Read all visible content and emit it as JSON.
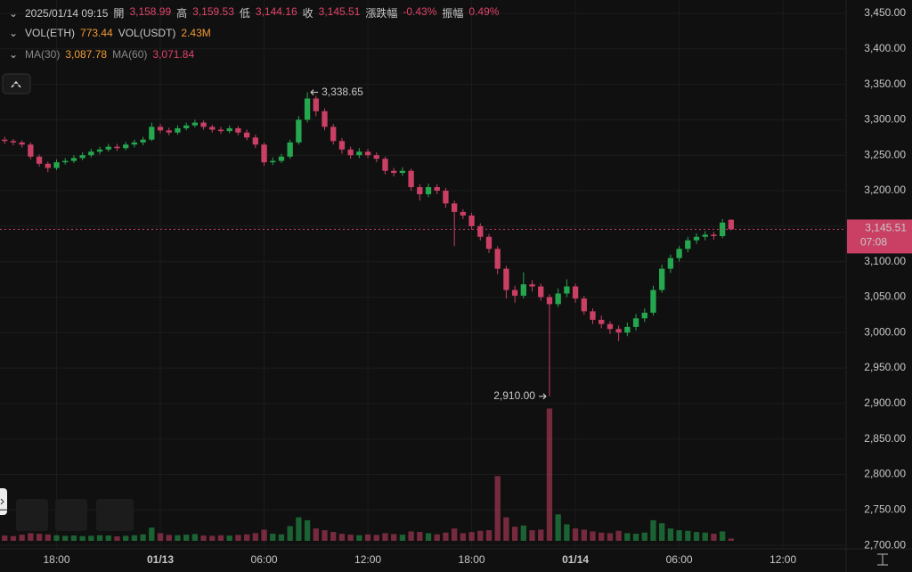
{
  "header": {
    "time": "2025/01/14 09:15",
    "fields": [
      {
        "label": "開",
        "value": "3,158.99"
      },
      {
        "label": "高",
        "value": "3,159.53"
      },
      {
        "label": "低",
        "value": "3,144.16"
      },
      {
        "label": "收",
        "value": "3,145.51"
      },
      {
        "label": "漲跌幅",
        "value": "-0.43%"
      },
      {
        "label": "振幅",
        "value": "0.49%"
      }
    ],
    "volume": [
      {
        "label": "VOL(ETH)",
        "value": "773.44"
      },
      {
        "label": "VOL(USDT)",
        "value": "2.43M"
      }
    ],
    "ma": [
      {
        "label": "MA(30)",
        "value": "3,087.78"
      },
      {
        "label": "MA(60)",
        "value": "3,071.84"
      }
    ]
  },
  "chart_data": {
    "type": "candlestick",
    "up_color": "#25a750",
    "down_color": "#ca3f64",
    "grid": true,
    "xlim": [
      -9.27,
      39.65
    ],
    "xticks": [
      {
        "value": -6,
        "label": "18:00"
      },
      {
        "value": 0,
        "label": "01/13"
      },
      {
        "value": 6,
        "label": "06:00"
      },
      {
        "value": 12,
        "label": "12:00"
      },
      {
        "value": 18,
        "label": "18:00"
      },
      {
        "value": 24,
        "label": "01/14"
      },
      {
        "value": 30,
        "label": "06:00"
      },
      {
        "value": 36,
        "label": "12:00"
      }
    ],
    "ylim": [
      2690.1,
      3468.8
    ],
    "yticks": [
      {
        "value": 2700,
        "label": "2,700.00"
      },
      {
        "value": 2750,
        "label": "2,750.00"
      },
      {
        "value": 2800,
        "label": "2,800.00"
      },
      {
        "value": 2850,
        "label": "2,850.00"
      },
      {
        "value": 2900,
        "label": "2,900.00"
      },
      {
        "value": 2950,
        "label": "2,950.00"
      },
      {
        "value": 3000,
        "label": "3,000.00"
      },
      {
        "value": 3050,
        "label": "3,050.00"
      },
      {
        "value": 3100,
        "label": "3,100.00"
      },
      {
        "value": 3150,
        "label": "3,150.00"
      },
      {
        "value": 3200,
        "label": "3,200.00"
      },
      {
        "value": 3250,
        "label": "3,250.00"
      },
      {
        "value": 3300,
        "label": "3,300.00"
      },
      {
        "value": 3350,
        "label": "3,350.00"
      },
      {
        "value": 3400,
        "label": "3,400.00"
      },
      {
        "value": 3450,
        "label": "3,450.00"
      }
    ],
    "x": [
      -9,
      -8.5,
      -8,
      -7.5,
      -7,
      -6.5,
      -6,
      -5.5,
      -5,
      -4.5,
      -4,
      -3.5,
      -3,
      -2.5,
      -2,
      -1.5,
      -1,
      -0.5,
      0,
      0.5,
      1,
      1.5,
      2,
      2.5,
      3,
      3.5,
      4,
      4.5,
      5,
      5.5,
      6,
      6.5,
      7,
      7.5,
      8,
      8.5,
      9,
      9.5,
      10,
      10.5,
      11,
      11.5,
      12,
      12.5,
      13,
      13.5,
      14,
      14.5,
      15,
      15.5,
      16,
      16.5,
      17,
      17.5,
      18,
      18.5,
      19,
      19.5,
      20,
      20.5,
      21,
      21.5,
      22,
      22.5,
      23,
      23.5,
      24,
      24.5,
      25,
      25.5,
      26,
      26.5,
      27,
      27.5,
      28,
      28.5,
      29,
      29.5,
      30,
      30.5,
      31,
      31.5,
      32,
      32.5,
      33
    ],
    "candles": [
      [
        3272,
        3276,
        3266,
        3270
      ],
      [
        3270,
        3273,
        3264,
        3268
      ],
      [
        3268,
        3271,
        3261,
        3265
      ],
      [
        3265,
        3268,
        3244,
        3248
      ],
      [
        3248,
        3251,
        3234,
        3238
      ],
      [
        3238,
        3241,
        3226,
        3232
      ],
      [
        3232,
        3244,
        3229,
        3240
      ],
      [
        3240,
        3246,
        3237,
        3242
      ],
      [
        3242,
        3250,
        3239,
        3246
      ],
      [
        3246,
        3254,
        3243,
        3250
      ],
      [
        3250,
        3259,
        3247,
        3255
      ],
      [
        3255,
        3262,
        3251,
        3258
      ],
      [
        3258,
        3266,
        3255,
        3262
      ],
      [
        3262,
        3266,
        3256,
        3260
      ],
      [
        3260,
        3269,
        3257,
        3265
      ],
      [
        3265,
        3272,
        3261,
        3268
      ],
      [
        3268,
        3276,
        3264,
        3272
      ],
      [
        3272,
        3296,
        3270,
        3290
      ],
      [
        3290,
        3294,
        3281,
        3285
      ],
      [
        3285,
        3289,
        3278,
        3282
      ],
      [
        3282,
        3292,
        3279,
        3288
      ],
      [
        3288,
        3296,
        3285,
        3292
      ],
      [
        3292,
        3300,
        3289,
        3296
      ],
      [
        3296,
        3299,
        3286,
        3290
      ],
      [
        3290,
        3293,
        3282,
        3286
      ],
      [
        3286,
        3290,
        3280,
        3284
      ],
      [
        3284,
        3292,
        3281,
        3288
      ],
      [
        3288,
        3291,
        3278,
        3282
      ],
      [
        3282,
        3286,
        3271,
        3275
      ],
      [
        3275,
        3279,
        3260,
        3265
      ],
      [
        3265,
        3268,
        3235,
        3240
      ],
      [
        3240,
        3247,
        3236,
        3242
      ],
      [
        3242,
        3252,
        3239,
        3248
      ],
      [
        3248,
        3272,
        3245,
        3268
      ],
      [
        3268,
        3305,
        3265,
        3300
      ],
      [
        3300,
        3338.65,
        3296,
        3330
      ],
      [
        3330,
        3334,
        3305,
        3312
      ],
      [
        3312,
        3316,
        3285,
        3290
      ],
      [
        3290,
        3294,
        3265,
        3270
      ],
      [
        3270,
        3274,
        3252,
        3258
      ],
      [
        3258,
        3262,
        3245,
        3250
      ],
      [
        3250,
        3260,
        3246,
        3255
      ],
      [
        3255,
        3259,
        3246,
        3250
      ],
      [
        3250,
        3254,
        3240,
        3245
      ],
      [
        3245,
        3248,
        3223,
        3228
      ],
      [
        3228,
        3232,
        3220,
        3225
      ],
      [
        3225,
        3233,
        3221,
        3228
      ],
      [
        3228,
        3231,
        3200,
        3205
      ],
      [
        3205,
        3209,
        3186,
        3195
      ],
      [
        3195,
        3210,
        3191,
        3205
      ],
      [
        3205,
        3209,
        3195,
        3200
      ],
      [
        3200,
        3204,
        3176,
        3182
      ],
      [
        3182,
        3186,
        3122,
        3170
      ],
      [
        3170,
        3174,
        3160,
        3165
      ],
      [
        3165,
        3169,
        3145,
        3150
      ],
      [
        3150,
        3154,
        3130,
        3135
      ],
      [
        3135,
        3139,
        3112,
        3118
      ],
      [
        3118,
        3122,
        3082,
        3090
      ],
      [
        3090,
        3094,
        3048,
        3060
      ],
      [
        3060,
        3066,
        3042,
        3052
      ],
      [
        3052,
        3085,
        3048,
        3068
      ],
      [
        3068,
        3074,
        3058,
        3065
      ],
      [
        3065,
        3069,
        3045,
        3050
      ],
      [
        3050,
        3054,
        2910,
        3040
      ],
      [
        3040,
        3062,
        3036,
        3055
      ],
      [
        3055,
        3075,
        3050,
        3065
      ],
      [
        3065,
        3069,
        3042,
        3048
      ],
      [
        3048,
        3052,
        3025,
        3030
      ],
      [
        3030,
        3034,
        3012,
        3018
      ],
      [
        3018,
        3024,
        3006,
        3012
      ],
      [
        3012,
        3016,
        2998,
        3005
      ],
      [
        3005,
        3010,
        2988,
        3000
      ],
      [
        3000,
        3014,
        2995,
        3008
      ],
      [
        3008,
        3026,
        3003,
        3020
      ],
      [
        3020,
        3034,
        3015,
        3028
      ],
      [
        3028,
        3066,
        3024,
        3060
      ],
      [
        3060,
        3096,
        3056,
        3090
      ],
      [
        3090,
        3110,
        3084,
        3105
      ],
      [
        3105,
        3122,
        3100,
        3118
      ],
      [
        3118,
        3135,
        3113,
        3130
      ],
      [
        3130,
        3140,
        3125,
        3135
      ],
      [
        3135,
        3143,
        3130,
        3138
      ],
      [
        3138,
        3142,
        3131,
        3136
      ],
      [
        3136,
        3160,
        3133,
        3155
      ],
      [
        3158.99,
        3159.53,
        3144.16,
        3145.51
      ]
    ],
    "volumes": [
      1800,
      1600,
      2100,
      2600,
      2400,
      2200,
      1900,
      1700,
      1800,
      1600,
      1700,
      1900,
      1800,
      1500,
      1700,
      1900,
      2200,
      4500,
      2600,
      2000,
      1900,
      2100,
      2300,
      1800,
      1700,
      1900,
      1800,
      2000,
      2200,
      2600,
      3800,
      2400,
      2200,
      5000,
      8000,
      7000,
      4200,
      3600,
      3000,
      2400,
      2100,
      1900,
      2200,
      2000,
      2600,
      2300,
      2100,
      3200,
      3000,
      2600,
      2200,
      2800,
      4200,
      2600,
      3000,
      3400,
      3600,
      22000,
      8000,
      4800,
      5200,
      3600,
      3800,
      45000,
      9000,
      5600,
      4200,
      3800,
      3200,
      2800,
      2600,
      3400,
      2600,
      2400,
      2800,
      7000,
      6000,
      4200,
      3600,
      3400,
      3000,
      2800,
      2400,
      3200,
      773.44
    ],
    "annotations": [
      {
        "label": "3,338.65",
        "value": 3338.65,
        "x": 8.5
      },
      {
        "label": "2,910.00",
        "value": 2910.0,
        "x": 22.5
      }
    ],
    "price_tag": {
      "value": 3145.51,
      "label": "3,145.51",
      "countdown": "07:08"
    }
  }
}
